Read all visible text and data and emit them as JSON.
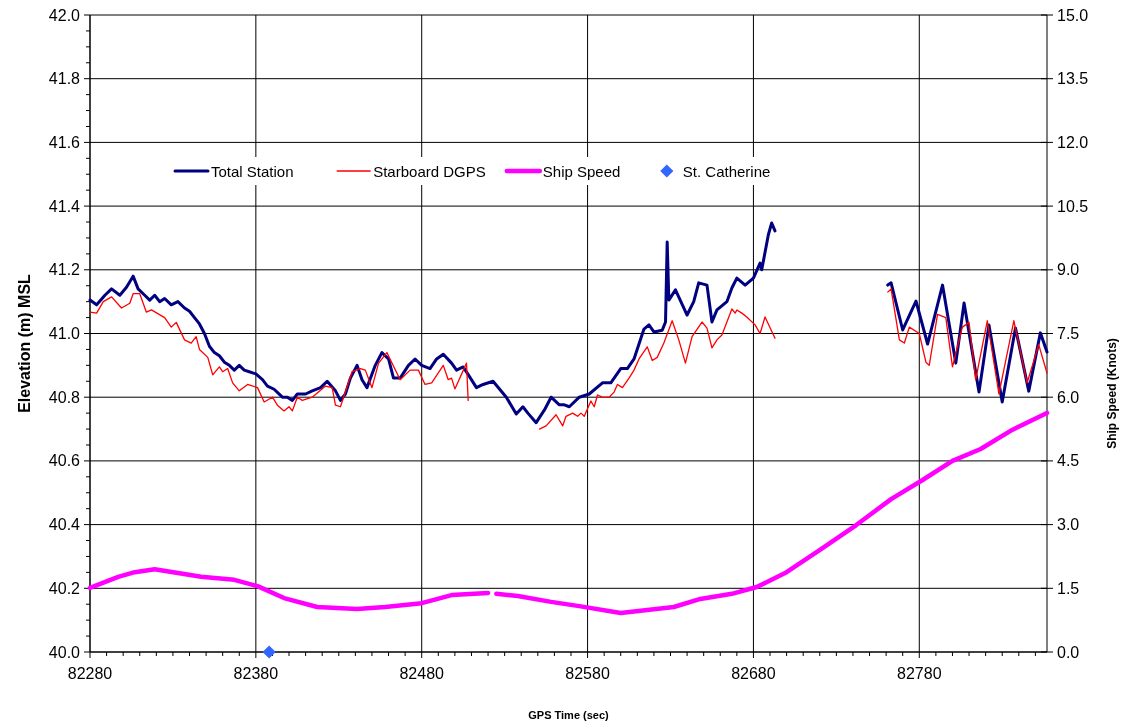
{
  "chart_data": {
    "type": "line",
    "xlabel": "GPS Time (sec)",
    "ylabel": "Elevation (m) MSL",
    "y2label": "Ship Speed (Knots)",
    "xlim": [
      82280,
      82857
    ],
    "xticks": [
      82280,
      {
        "value": 82290,
        "label": null
      },
      {
        "value": 82300,
        "label": null
      },
      {
        "value": 82310,
        "label": null
      },
      {
        "value": 82320,
        "label": null
      },
      {
        "value": 82330,
        "label": null
      },
      {
        "value": 82340,
        "label": null
      },
      {
        "value": 82350,
        "label": null
      },
      {
        "value": 82360,
        "label": null
      },
      {
        "value": 82370,
        "label": null
      },
      82380,
      {
        "value": 82390,
        "label": null
      },
      {
        "value": 82400,
        "label": null
      },
      {
        "value": 82410,
        "label": null
      },
      {
        "value": 82420,
        "label": null
      },
      {
        "value": 82430,
        "label": null
      },
      {
        "value": 82440,
        "label": null
      },
      {
        "value": 82450,
        "label": null
      },
      {
        "value": 82460,
        "label": null
      },
      {
        "value": 82470,
        "label": null
      },
      82480,
      {
        "value": 82490,
        "label": null
      },
      {
        "value": 82500,
        "label": null
      },
      {
        "value": 82510,
        "label": null
      },
      {
        "value": 82520,
        "label": null
      },
      {
        "value": 82530,
        "label": null
      },
      {
        "value": 82540,
        "label": null
      },
      {
        "value": 82550,
        "label": null
      },
      {
        "value": 82560,
        "label": null
      },
      {
        "value": 82570,
        "label": null
      },
      82580,
      {
        "value": 82590,
        "label": null
      },
      {
        "value": 82600,
        "label": null
      },
      {
        "value": 82610,
        "label": null
      },
      {
        "value": 82620,
        "label": null
      },
      {
        "value": 82630,
        "label": null
      },
      {
        "value": 82640,
        "label": null
      },
      {
        "value": 82650,
        "label": null
      },
      {
        "value": 82660,
        "label": null
      },
      {
        "value": 82670,
        "label": null
      },
      82680,
      {
        "value": 82690,
        "label": null
      },
      {
        "value": 82700,
        "label": null
      },
      {
        "value": 82710,
        "label": null
      },
      {
        "value": 82720,
        "label": null
      },
      {
        "value": 82730,
        "label": null
      },
      {
        "value": 82740,
        "label": null
      },
      {
        "value": 82750,
        "label": null
      },
      {
        "value": 82760,
        "label": null
      },
      {
        "value": 82770,
        "label": null
      },
      82780,
      {
        "value": 82790,
        "label": null
      },
      {
        "value": 82800,
        "label": null
      },
      {
        "value": 82810,
        "label": null
      },
      {
        "value": 82820,
        "label": null
      },
      {
        "value": 82830,
        "label": null
      },
      {
        "value": 82840,
        "label": null
      },
      {
        "value": 82850,
        "label": null
      }
    ],
    "ylim": [
      40.0,
      42.0
    ],
    "yticks": [
      {
        "value": 40.0,
        "label": "40.0"
      },
      {
        "value": 40.05,
        "label": null
      },
      {
        "value": 40.1,
        "label": null
      },
      {
        "value": 40.15,
        "label": null
      },
      {
        "value": 40.2,
        "label": "40.2"
      },
      {
        "value": 40.25,
        "label": null
      },
      {
        "value": 40.3,
        "label": null
      },
      {
        "value": 40.35,
        "label": null
      },
      {
        "value": 40.4,
        "label": "40.4"
      },
      {
        "value": 40.45,
        "label": null
      },
      {
        "value": 40.5,
        "label": null
      },
      {
        "value": 40.55,
        "label": null
      },
      {
        "value": 40.6,
        "label": "40.6"
      },
      {
        "value": 40.65,
        "label": null
      },
      {
        "value": 40.7,
        "label": null
      },
      {
        "value": 40.75,
        "label": null
      },
      {
        "value": 40.8,
        "label": "40.8"
      },
      {
        "value": 40.85,
        "label": null
      },
      {
        "value": 40.9,
        "label": null
      },
      {
        "value": 40.95,
        "label": null
      },
      {
        "value": 41.0,
        "label": "41.0"
      },
      {
        "value": 41.05,
        "label": null
      },
      {
        "value": 41.1,
        "label": null
      },
      {
        "value": 41.15,
        "label": null
      },
      {
        "value": 41.2,
        "label": "41.2"
      },
      {
        "value": 41.25,
        "label": null
      },
      {
        "value": 41.3,
        "label": null
      },
      {
        "value": 41.35,
        "label": null
      },
      {
        "value": 41.4,
        "label": "41.4"
      },
      {
        "value": 41.45,
        "label": null
      },
      {
        "value": 41.5,
        "label": null
      },
      {
        "value": 41.55,
        "label": null
      },
      {
        "value": 41.6,
        "label": "41.6"
      },
      {
        "value": 41.65,
        "label": null
      },
      {
        "value": 41.7,
        "label": null
      },
      {
        "value": 41.75,
        "label": null
      },
      {
        "value": 41.8,
        "label": "41.8"
      },
      {
        "value": 41.85,
        "label": null
      },
      {
        "value": 41.9,
        "label": null
      },
      {
        "value": 41.95,
        "label": null
      },
      {
        "value": 42.0,
        "label": "42.0"
      }
    ],
    "y2lim": [
      0,
      15
    ],
    "y2ticks": [
      {
        "value": 0,
        "label": "0.0"
      },
      {
        "value": 1.5,
        "label": "1.5"
      },
      {
        "value": 3,
        "label": "3.0"
      },
      {
        "value": 4.5,
        "label": "4.5"
      },
      {
        "value": 6,
        "label": "6.0"
      },
      {
        "value": 7.5,
        "label": "7.5"
      },
      {
        "value": 9,
        "label": "9.0"
      },
      {
        "value": 10.5,
        "label": "10.5"
      },
      {
        "value": 12,
        "label": "12.0"
      },
      {
        "value": 13.5,
        "label": "13.5"
      },
      {
        "value": 15,
        "label": "15.0"
      }
    ],
    "grid": true,
    "legend": "top",
    "series": [
      {
        "name": "Total Station",
        "color": "#000080",
        "x": [
          82280,
          82284,
          82289,
          82293,
          82298,
          82302,
          82306,
          82309,
          82313,
          82316,
          82319,
          82322,
          82325,
          82329,
          82333,
          82337,
          82340,
          82343,
          82346,
          82349,
          82352,
          82355,
          82358,
          82361,
          82364,
          82367,
          82370,
          82373,
          82376,
          82380,
          82384,
          82387,
          82391,
          82396,
          82399,
          82402,
          82405,
          82410,
          82414,
          82419,
          82423,
          82428,
          82431,
          82434,
          82437,
          82441,
          82444,
          82447,
          82452,
          82456,
          82460,
          82463,
          82467,
          82472,
          82476,
          82480,
          82485,
          82489,
          82493,
          82498,
          82501,
          82505,
          82509,
          82513,
          82517,
          82523,
          82531,
          82537,
          82541,
          82544,
          82549,
          82554,
          82558,
          82563,
          82566,
          82569,
          82575,
          82581,
          82589,
          82594,
          82600,
          82604,
          82608,
          82614,
          82617,
          82620,
          82625,
          82627,
          82628,
          82629,
          82633,
          82640,
          82644,
          82647,
          82652,
          82655,
          82658,
          82664,
          82667,
          82670,
          82675,
          82680,
          82684,
          82685,
          82689,
          82691,
          82693,
          82725,
          82761,
          82763,
          82770,
          82778,
          82785,
          82794,
          82802,
          82807,
          82816,
          82822,
          82830,
          82838,
          82846,
          82853,
          82857
        ],
        "values": [
          41.105,
          41.09,
          41.12,
          41.14,
          41.12,
          41.145,
          41.18,
          41.14,
          41.12,
          41.105,
          41.12,
          41.1,
          41.11,
          41.09,
          41.1,
          41.08,
          41.07,
          41.05,
          41.03,
          41.0,
          40.96,
          40.94,
          40.93,
          40.91,
          40.9,
          40.885,
          40.9,
          40.885,
          40.88,
          40.873,
          40.855,
          40.835,
          40.825,
          40.8,
          40.8,
          40.79,
          40.81,
          40.81,
          40.82,
          40.83,
          40.85,
          40.82,
          40.79,
          40.81,
          40.86,
          40.9,
          40.855,
          40.83,
          40.9,
          40.94,
          40.92,
          40.86,
          40.86,
          40.9,
          40.92,
          40.9,
          40.89,
          40.92,
          40.935,
          40.907,
          40.885,
          40.895,
          40.863,
          40.83,
          40.84,
          40.85,
          40.8,
          40.747,
          40.77,
          40.75,
          40.72,
          40.76,
          40.8,
          40.776,
          40.776,
          40.77,
          40.8,
          40.81,
          40.845,
          40.845,
          40.89,
          40.89,
          40.92,
          41.014,
          41.027,
          41.005,
          41.01,
          41.036,
          41.287,
          41.105,
          41.137,
          41.058,
          41.1,
          41.159,
          41.152,
          41.036,
          41.074,
          41.1,
          41.143,
          41.174,
          41.152,
          41.174,
          41.221,
          41.2,
          41.31,
          41.347,
          41.322,
          null,
          41.152,
          41.159,
          41.011,
          41.102,
          40.967,
          41.152,
          40.907,
          41.096,
          40.816,
          41.027,
          40.785,
          41.017,
          40.819,
          41.002,
          40.942
        ]
      },
      {
        "name": "Starboard DGPS",
        "color": "#ff0000",
        "x": [
          82280,
          82284,
          82288,
          82293,
          82299,
          82304,
          82306,
          82310,
          82314,
          82317,
          82325,
          82329,
          82332,
          82337,
          82341,
          82344,
          82346,
          82351,
          82354,
          82358,
          82360,
          82363,
          82366,
          82370,
          82375,
          82381,
          82385,
          82390,
          82393,
          82397,
          82400,
          82402,
          82405,
          82408,
          82414,
          82422,
          82426,
          82428,
          82431,
          82438,
          82443,
          82446,
          82450,
          82454,
          82459,
          82467,
          82473,
          82478,
          82482,
          82486,
          82493,
          82496,
          82498,
          82500,
          82507,
          82508,
          82520,
          82551,
          82555,
          82561,
          82565,
          82567,
          82571,
          82574,
          82576,
          82578,
          82582,
          82584,
          82586,
          82589,
          82593,
          82596,
          82598,
          82601,
          82605,
          82608,
          82611,
          82616,
          82619,
          82622,
          82626,
          82631,
          82635,
          82639,
          82643,
          82649,
          82652,
          82655,
          82658,
          82661,
          82667,
          82669,
          82670,
          82673,
          82676,
          82681,
          82684,
          82687,
          82693,
          82725,
          82761,
          82763,
          82768,
          82771,
          82774,
          82780,
          82784,
          82786,
          82791,
          82796,
          82800,
          82806,
          82810,
          82814,
          82821,
          82828,
          82837,
          82845,
          82852,
          82857
        ],
        "values": [
          41.067,
          41.064,
          41.1,
          41.115,
          41.08,
          41.095,
          41.125,
          41.125,
          41.067,
          41.074,
          41.05,
          41.02,
          41.035,
          40.98,
          40.97,
          40.99,
          40.95,
          40.925,
          40.87,
          40.895,
          40.88,
          40.89,
          40.845,
          40.82,
          40.84,
          40.83,
          40.785,
          40.8,
          40.775,
          40.757,
          40.77,
          40.757,
          40.8,
          40.79,
          40.8,
          40.835,
          40.83,
          40.775,
          40.77,
          40.88,
          40.89,
          40.885,
          40.83,
          40.907,
          40.94,
          40.855,
          40.885,
          40.885,
          40.84,
          40.845,
          40.9,
          40.855,
          40.86,
          40.826,
          40.907,
          40.79,
          null,
          40.7,
          40.71,
          40.745,
          40.71,
          40.74,
          40.75,
          40.74,
          40.75,
          40.74,
          40.788,
          40.77,
          40.807,
          40.8,
          40.8,
          40.816,
          40.84,
          40.83,
          40.86,
          40.885,
          40.92,
          40.958,
          40.915,
          40.925,
          40.97,
          41.04,
          40.98,
          40.907,
          40.99,
          41.036,
          41.017,
          40.955,
          40.98,
          40.995,
          41.077,
          41.064,
          41.074,
          41.064,
          41.052,
          41.027,
          41.0,
          41.052,
          40.985,
          null,
          41.13,
          41.14,
          40.98,
          40.97,
          41.02,
          41.0,
          40.91,
          40.9,
          41.06,
          41.05,
          40.895,
          41.02,
          41.035,
          40.855,
          41.04,
          40.81,
          41.04,
          40.845,
          40.965,
          40.876
        ]
      },
      {
        "name": "Ship Speed",
        "axis": "y2",
        "color": "#ff00ff",
        "x": [
          82280,
          82297,
          82307,
          82319,
          82333,
          82347,
          82367,
          82381,
          82397,
          82417,
          82441,
          82458,
          82480,
          82498,
          82520,
          82522,
          82525,
          82538,
          82558,
          82575,
          82600,
          82632,
          82648,
          82667,
          82682,
          82700,
          82721,
          82742,
          82763,
          82782,
          82800,
          82817,
          82836,
          82857
        ],
        "values": [
          1.51,
          1.77,
          1.88,
          1.95,
          1.86,
          1.77,
          1.7,
          1.55,
          1.27,
          1.06,
          1.01,
          1.06,
          1.15,
          1.34,
          1.39,
          null,
          1.37,
          1.32,
          1.18,
          1.08,
          0.92,
          1.06,
          1.25,
          1.37,
          1.53,
          1.88,
          2.43,
          2.99,
          3.6,
          4.05,
          4.5,
          4.78,
          5.23,
          5.63
        ]
      },
      {
        "name": "St. Catherine",
        "type": "scatter",
        "marker": "diamond",
        "color": "#3366ff",
        "x": [
          82388
        ],
        "values": [
          40.0
        ]
      }
    ]
  }
}
